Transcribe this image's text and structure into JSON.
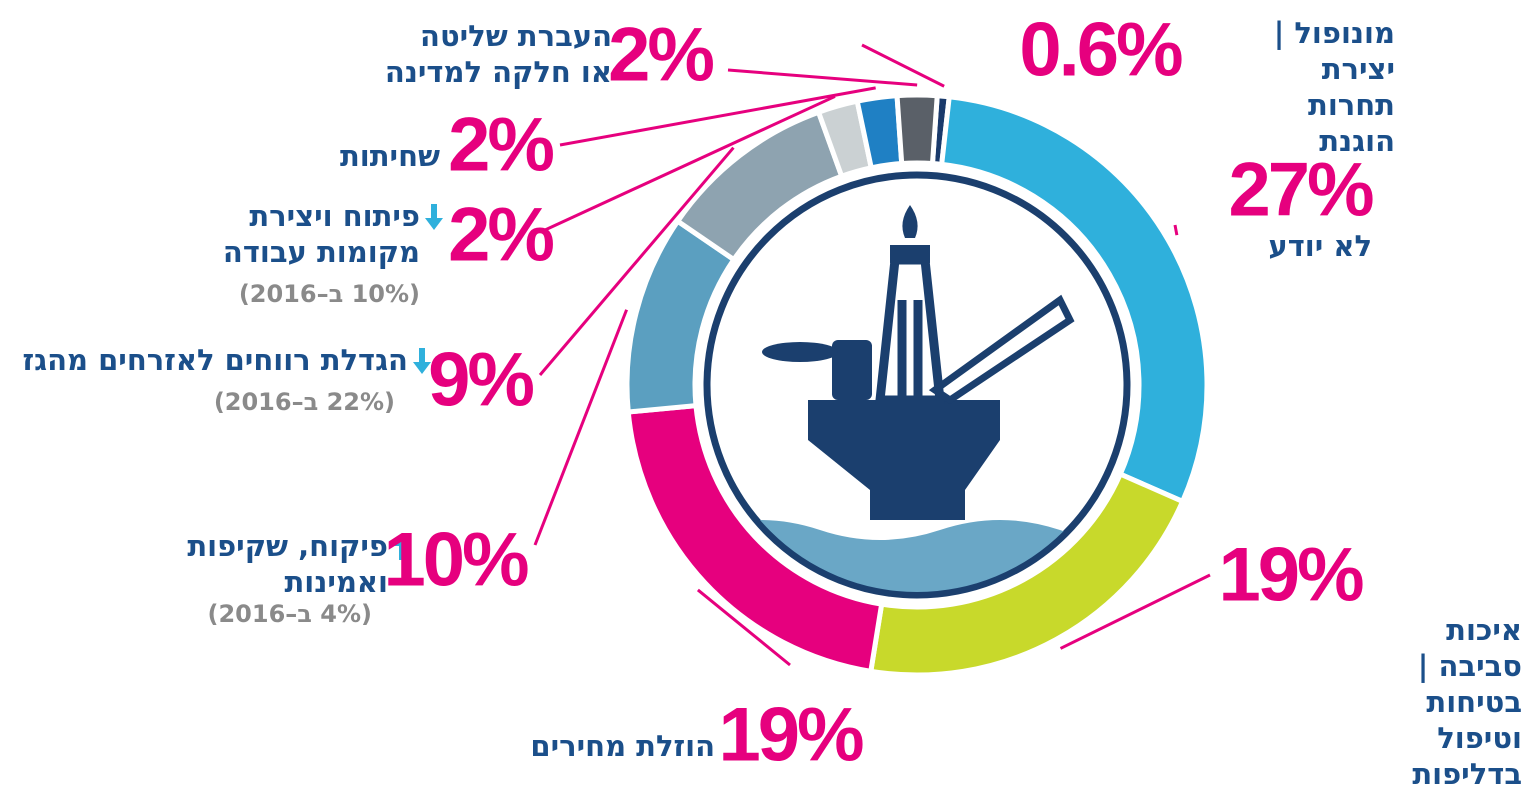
{
  "chart_data": {
    "type": "donut",
    "categories": [
      "מונופול | יצירת\nתחרות הוגנת",
      "לא יודע",
      "איכות סביבה | בטיחות\nוטיפול בדליפות",
      "הוזלת מחירים",
      "פיקוח, שקיפות\nואמינות",
      "הגדלת רווחים לאזרחים מהגז",
      "פיתוח ויצירת\nמקומות עבודה",
      "שחיתות",
      "העברת שליטה\nאו חלקה למדינה"
    ],
    "values": [
      0.6,
      27,
      19,
      19,
      10,
      9,
      2,
      2,
      2
    ],
    "value_labels": [
      "0.6%",
      "27%",
      "19%",
      "19%",
      "10%",
      "9%",
      "2%",
      "2%",
      "2%"
    ],
    "notes": [
      null,
      null,
      null,
      null,
      "(4% ב–2016)",
      "(22% ב–2016)",
      "(10% ב–2016)",
      null,
      null
    ],
    "colors": [
      "#1a3a6b",
      "#2fb0dc",
      "#c8d92b",
      "#e6007e",
      "#5b9fc0",
      "#8ea3b0",
      "#cbd1d3",
      "#1f80c4",
      "#5a6068"
    ]
  }
}
